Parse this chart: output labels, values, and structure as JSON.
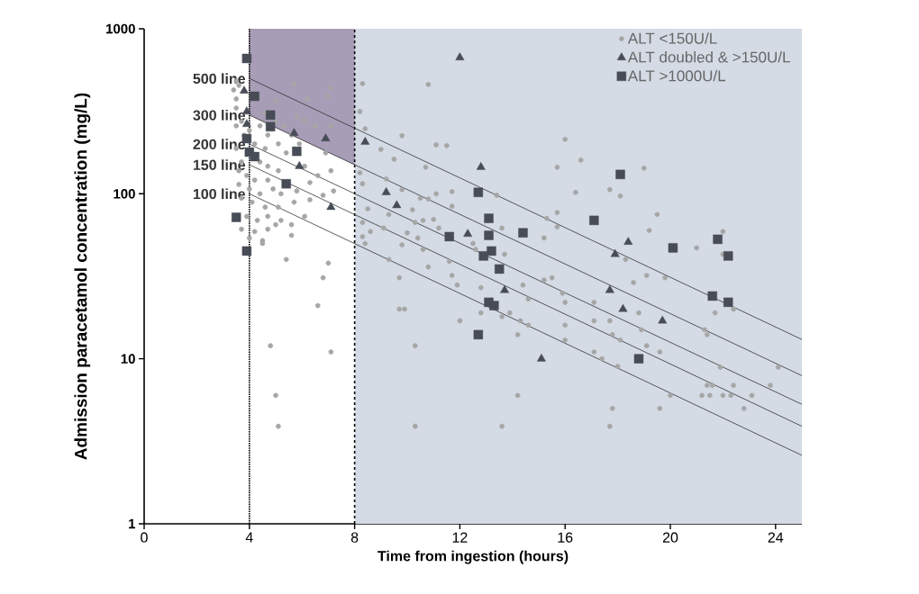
{
  "chart_data": {
    "type": "scatter",
    "xlabel": "Time from ingestion (hours)",
    "ylabel": "Admission paracetamol concentration (mg/L)",
    "xlim": [
      0,
      25
    ],
    "xticks": [
      0,
      4,
      8,
      12,
      16,
      20,
      24
    ],
    "ylim": [
      1,
      1000
    ],
    "yticks": [
      1,
      10,
      100,
      1000
    ],
    "log": "y",
    "grid": false,
    "legend": "top right",
    "bands": [
      {
        "axis": "x",
        "from": 8,
        "to": 25,
        "color": "#d4dbe5"
      }
    ],
    "ref_lines": [
      {
        "axis": "x",
        "value": 4,
        "color": "#000000",
        "line_style": "dotted"
      },
      {
        "axis": "x",
        "value": 8,
        "color": "#000000",
        "line_style": "dashed"
      }
    ],
    "series": [
      {
        "type": "area",
        "color": "#a89db6",
        "x": [
          4,
          8,
          8,
          4
        ],
        "values": [
          300,
          150,
          1000,
          1000
        ]
      },
      {
        "type": "line",
        "name": "500 line",
        "color": "#333333",
        "x": [
          4,
          25
        ],
        "values": [
          500,
          13.1
        ]
      },
      {
        "type": "line",
        "name": "300 line",
        "color": "#333333",
        "x": [
          4,
          25
        ],
        "values": [
          300,
          7.9
        ]
      },
      {
        "type": "line",
        "name": "200 line",
        "color": "#333333",
        "x": [
          4,
          25
        ],
        "values": [
          200,
          5.3
        ]
      },
      {
        "type": "line",
        "name": "150 line",
        "color": "#333333",
        "x": [
          4,
          25
        ],
        "values": [
          150,
          3.9
        ]
      },
      {
        "type": "line",
        "name": "100 line",
        "color": "#333333",
        "x": [
          4,
          25
        ],
        "values": [
          100,
          2.6
        ]
      },
      {
        "type": "scatter",
        "name": "ALT <150U/L",
        "color": "#a6a6a6",
        "marker": "circle",
        "x": [
          8.3,
          10.8,
          8.2,
          8.4,
          9.8,
          11.1,
          11.5,
          9.0,
          9.5,
          10.7,
          8.2,
          8.3,
          9.2,
          9.8,
          11.1,
          11.7,
          10.5,
          10.8,
          8.5,
          10.2,
          11.7,
          9.3,
          11.0,
          10.3,
          10.6,
          8.3,
          8.6,
          9.1,
          10.0,
          11.2,
          10.4,
          8.3,
          8.4,
          9.8,
          12.5,
          13.6,
          13.4,
          12.6,
          13.7,
          10.6,
          9.3,
          11.6,
          10.8,
          9.7,
          11.7,
          11.9,
          12.8,
          14.4,
          14.6,
          9.7,
          9.9,
          12.8,
          13.6,
          13.9,
          12.0,
          14.3,
          14.6,
          14.2,
          10.3,
          14.2,
          10.3,
          13.6,
          15.7,
          16.0,
          15.7,
          16.4,
          15.3,
          15.7,
          15.2,
          15.2,
          15.5,
          15.9,
          16.0,
          16.0,
          16.0,
          16.6,
          19.0,
          17.7,
          18.1,
          19.5,
          19.2,
          21.0,
          22.0,
          22.0,
          18.3,
          19.1,
          19.8,
          18.6,
          21.7,
          22.4,
          18.8,
          17.1,
          17.1,
          17.7,
          18.9,
          17.8,
          18.1,
          19.1,
          21.3,
          21.4,
          17.1,
          17.4,
          18.0,
          19.6,
          21.9,
          24.1,
          21.4,
          21.6,
          22.4,
          23.8,
          21.2,
          21.5,
          22.0,
          22.3,
          23.1,
          22.8,
          20.0,
          17.8,
          19.6,
          17.7,
          3.5,
          5.7,
          7.1,
          7.0,
          6.2,
          3.5,
          5.0,
          5.8,
          6.1,
          7.1,
          6.5,
          6.9,
          7.1,
          6.3,
          7.2,
          5.8,
          6.3,
          6.8,
          5.0,
          5.6,
          4.5,
          5.4,
          7.0,
          6.8,
          6.6,
          4.8,
          7.1,
          5.0,
          5.1,
          3.5,
          3.7,
          3.8,
          4.0,
          4.4,
          4.7,
          4.2,
          4.6,
          5.1,
          5.4,
          3.5,
          3.7,
          4.4,
          4.7,
          5.1,
          3.9,
          4.2,
          4.7,
          3.6,
          4.0,
          4.4,
          4.9,
          5.2,
          5.7,
          3.7,
          4.1,
          4.6,
          5.1,
          3.9,
          4.3,
          4.7,
          5.2,
          5.6,
          6.1,
          3.7,
          4.2,
          4.7,
          4.0,
          4.5,
          3.6,
          4.6,
          5.0,
          5.3,
          5.6,
          5.9,
          6.1,
          6.6,
          3.5,
          3.4,
          3.6
        ],
        "values": [
          465,
          460,
          315,
          248,
          225,
          198,
          196,
          186,
          162,
          145,
          134,
          115,
          123,
          106,
          100,
          103,
          94,
          93,
          81,
          80,
          84,
          75,
          70,
          67,
          69,
          67,
          59,
          62,
          58,
          62,
          54,
          55,
          50,
          49,
          50,
          62,
          98,
          46,
          43,
          46,
          40,
          39,
          36,
          31,
          32,
          28,
          27,
          28,
          23,
          20,
          20,
          19,
          18,
          19,
          17,
          17,
          16,
          14,
          12,
          6.0,
          3.9,
          3.9,
          77,
          214,
          145,
          102,
          71,
          63,
          54,
          30,
          31,
          25,
          22,
          16,
          13,
          160,
          143,
          106,
          97,
          75,
          60,
          47,
          59,
          43,
          40,
          32,
          31,
          29,
          19,
          20,
          19,
          22,
          17,
          17,
          15,
          14,
          13,
          12,
          15,
          14,
          11,
          10,
          9.0,
          11,
          8.9,
          8.9,
          6.9,
          6.9,
          6.9,
          6.9,
          6.0,
          6.0,
          6.0,
          6.0,
          6.0,
          5.0,
          6.0,
          5.0,
          5.0,
          3.9,
          483,
          465,
          437,
          390,
          376,
          376,
          367,
          292,
          278,
          258,
          258,
          177,
          138,
          117,
          104,
          104,
          92,
          98,
          65,
          56,
          52,
          40,
          38,
          31,
          21,
          12,
          11,
          6.0,
          3.9,
          331,
          275,
          227,
          242,
          258,
          227,
          201,
          188,
          201,
          177,
          188,
          156,
          156,
          147,
          138,
          129,
          121,
          121,
          114,
          107,
          100,
          107,
          100,
          89,
          94,
          89,
          83,
          83,
          73,
          69,
          73,
          69,
          65,
          73,
          61,
          59,
          61,
          54,
          50,
          138,
          311,
          275,
          258,
          227,
          201,
          147,
          129,
          258,
          426,
          454
        ]
      },
      {
        "type": "scatter",
        "name": "ALT doubled & >150U/L",
        "color": "#474c56",
        "marker": "triangle",
        "x": [
          3.8,
          3.9,
          3.9,
          5.7,
          6.9,
          5.9,
          7.1,
          12.0,
          8.4,
          12.8,
          9.2,
          9.6,
          12.3,
          13.7,
          15.1,
          18.4,
          17.9,
          17.7,
          18.2,
          19.7
        ],
        "values": [
          421,
          315,
          264,
          233,
          216,
          147,
          83,
          670,
          206,
          145,
          102,
          85,
          57,
          26,
          10,
          51,
          43,
          26,
          20,
          17
        ]
      },
      {
        "type": "scatter",
        "name": "ALT >1000U/L",
        "color": "#474c56",
        "marker": "square",
        "x": [
          3.9,
          4.2,
          4.8,
          4.8,
          3.9,
          4.0,
          4.2,
          5.8,
          5.4,
          3.5,
          3.9,
          12.7,
          13.1,
          13.1,
          11.6,
          14.4,
          13.2,
          12.9,
          13.5,
          13.1,
          13.3,
          12.7,
          18.1,
          17.1,
          20.1,
          21.8,
          22.2,
          21.6,
          22.2,
          18.8
        ],
        "values": [
          661,
          390,
          300,
          255,
          216,
          179,
          168,
          181,
          115,
          72,
          45,
          102,
          71,
          56,
          55,
          58,
          45,
          42,
          35,
          22,
          21,
          14,
          131,
          69,
          47,
          53,
          42,
          24,
          22,
          10
        ]
      }
    ]
  }
}
